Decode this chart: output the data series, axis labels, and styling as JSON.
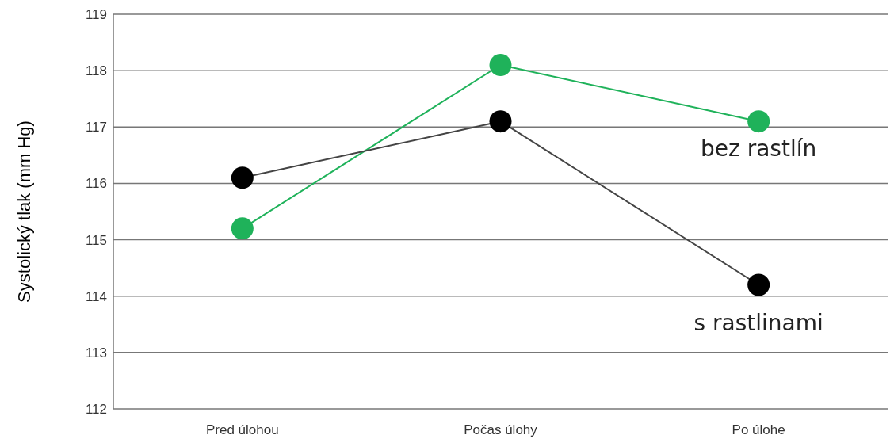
{
  "chart_data": {
    "type": "line",
    "ylabel": "Systolický tlak (mm Hg)",
    "categories": [
      "Pred úlohou",
      "Počas úlohy",
      "Po úlohe"
    ],
    "series": [
      {
        "name": "bez rastlín",
        "color": "#1fb25a",
        "values": [
          115.2,
          118.1,
          117.1
        ]
      },
      {
        "name": "s rastlinami",
        "color": "#000000",
        "values": [
          116.1,
          117.1,
          114.2
        ]
      }
    ],
    "ylim": [
      112,
      119
    ],
    "yticks": [
      112,
      113,
      114,
      115,
      116,
      117,
      118,
      119
    ],
    "grid": "y",
    "marker": "circle",
    "line_style": "solid"
  }
}
